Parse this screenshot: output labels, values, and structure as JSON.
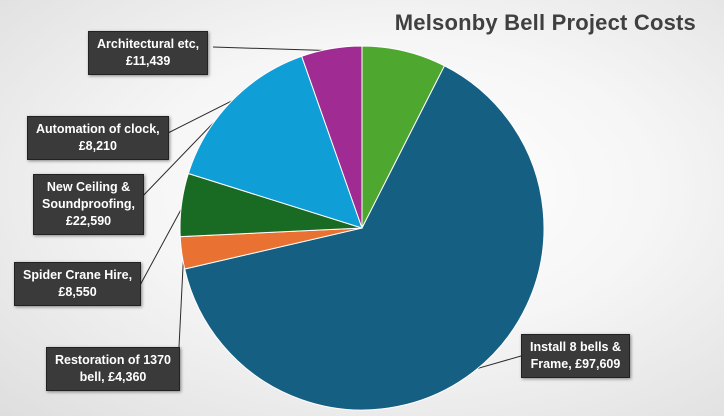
{
  "chart_data": {
    "type": "pie",
    "title": "Melsonby Bell Project Costs",
    "currency": "£",
    "slices": [
      {
        "name": "Architectural etc",
        "value": 11439,
        "color": "#4ea72e",
        "label_lines": [
          "Architectural etc,",
          "£11,439"
        ]
      },
      {
        "name": "Install 8 bells & Frame",
        "value": 97609,
        "color": "#156082",
        "label_lines": [
          "Install 8 bells &",
          "Frame, £97,609"
        ]
      },
      {
        "name": "Restoration of 1370 bell",
        "value": 4360,
        "color": "#e97132",
        "label_lines": [
          "Restoration of 1370",
          "bell, £4,360"
        ]
      },
      {
        "name": "Spider Crane Hire",
        "value": 8550,
        "color": "#196b24",
        "label_lines": [
          "Spider Crane Hire,",
          "£8,550"
        ]
      },
      {
        "name": "New Ceiling & Soundproofing",
        "value": 22590,
        "color": "#0f9ed5",
        "label_lines": [
          "New Ceiling &",
          "Soundproofing,",
          "£22,590"
        ]
      },
      {
        "name": "Automation of clock",
        "value": 8210,
        "color": "#a02b93",
        "label_lines": [
          "Automation of clock,",
          "£8,210"
        ]
      }
    ]
  }
}
